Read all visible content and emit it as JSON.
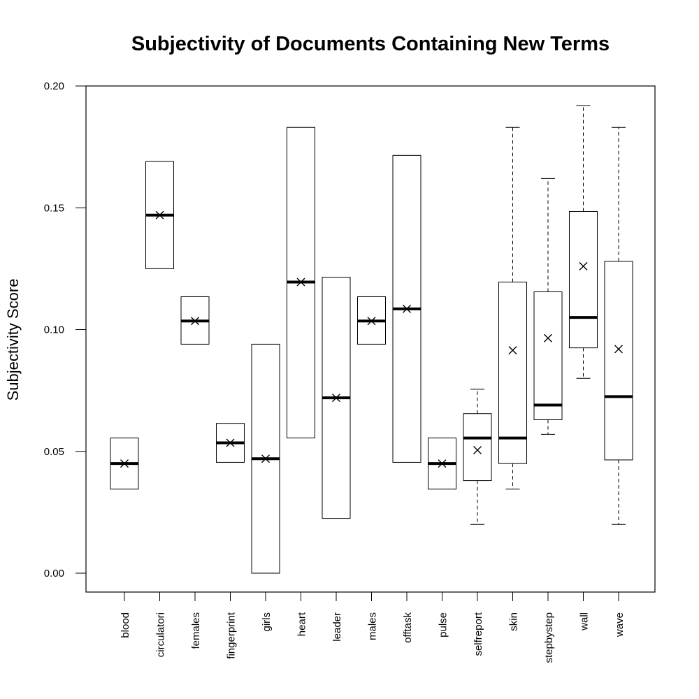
{
  "chart_data": {
    "type": "boxplot",
    "title": "Subjectivity of Documents Containing New Terms",
    "xlabel": "",
    "ylabel": "Subjectivity Score",
    "ylim": [
      0.0,
      0.2
    ],
    "yticks": [
      0.0,
      0.05,
      0.1,
      0.15,
      0.2
    ],
    "ytick_labels": [
      "0.00",
      "0.05",
      "0.10",
      "0.15",
      "0.20"
    ],
    "categories": [
      "blood",
      "circulatori",
      "females",
      "fingerprint",
      "girls",
      "heart",
      "leader",
      "males",
      "offtask",
      "pulse",
      "selfreport",
      "skin",
      "stepbystep",
      "wall",
      "wave"
    ],
    "boxes": [
      {
        "category": "blood",
        "q1": 0.0345,
        "median": 0.045,
        "q3": 0.0555,
        "whisker_low": null,
        "whisker_high": null,
        "mean": 0.045
      },
      {
        "category": "circulatori",
        "q1": 0.125,
        "median": 0.147,
        "q3": 0.169,
        "whisker_low": null,
        "whisker_high": null,
        "mean": 0.147
      },
      {
        "category": "females",
        "q1": 0.094,
        "median": 0.1035,
        "q3": 0.1135,
        "whisker_low": null,
        "whisker_high": null,
        "mean": 0.1035
      },
      {
        "category": "fingerprint",
        "q1": 0.0455,
        "median": 0.0535,
        "q3": 0.0615,
        "whisker_low": null,
        "whisker_high": null,
        "mean": 0.0535
      },
      {
        "category": "girls",
        "q1": 0.0,
        "median": 0.047,
        "q3": 0.094,
        "whisker_low": null,
        "whisker_high": null,
        "mean": 0.047
      },
      {
        "category": "heart",
        "q1": 0.0555,
        "median": 0.1195,
        "q3": 0.183,
        "whisker_low": null,
        "whisker_high": null,
        "mean": 0.1195
      },
      {
        "category": "leader",
        "q1": 0.0225,
        "median": 0.072,
        "q3": 0.1215,
        "whisker_low": null,
        "whisker_high": null,
        "mean": 0.072
      },
      {
        "category": "males",
        "q1": 0.094,
        "median": 0.1035,
        "q3": 0.1135,
        "whisker_low": null,
        "whisker_high": null,
        "mean": 0.1035
      },
      {
        "category": "offtask",
        "q1": 0.0455,
        "median": 0.1085,
        "q3": 0.1715,
        "whisker_low": null,
        "whisker_high": null,
        "mean": 0.1085
      },
      {
        "category": "pulse",
        "q1": 0.0345,
        "median": 0.045,
        "q3": 0.0555,
        "whisker_low": null,
        "whisker_high": null,
        "mean": 0.045
      },
      {
        "category": "selfreport",
        "q1": 0.038,
        "median": 0.0555,
        "q3": 0.0655,
        "whisker_low": 0.02,
        "whisker_high": 0.0755,
        "mean": 0.0505
      },
      {
        "category": "skin",
        "q1": 0.045,
        "median": 0.0555,
        "q3": 0.1195,
        "whisker_low": 0.0345,
        "whisker_high": 0.183,
        "mean": 0.0915
      },
      {
        "category": "stepbystep",
        "q1": 0.063,
        "median": 0.069,
        "q3": 0.1155,
        "whisker_low": 0.057,
        "whisker_high": 0.162,
        "mean": 0.0965
      },
      {
        "category": "wall",
        "q1": 0.0925,
        "median": 0.105,
        "q3": 0.1485,
        "whisker_low": 0.08,
        "whisker_high": 0.192,
        "mean": 0.126
      },
      {
        "category": "wave",
        "q1": 0.0465,
        "median": 0.0725,
        "q3": 0.128,
        "whisker_low": 0.02,
        "whisker_high": 0.183,
        "mean": 0.092
      }
    ],
    "colors": {
      "stroke": "#000000",
      "background": "#ffffff"
    }
  }
}
